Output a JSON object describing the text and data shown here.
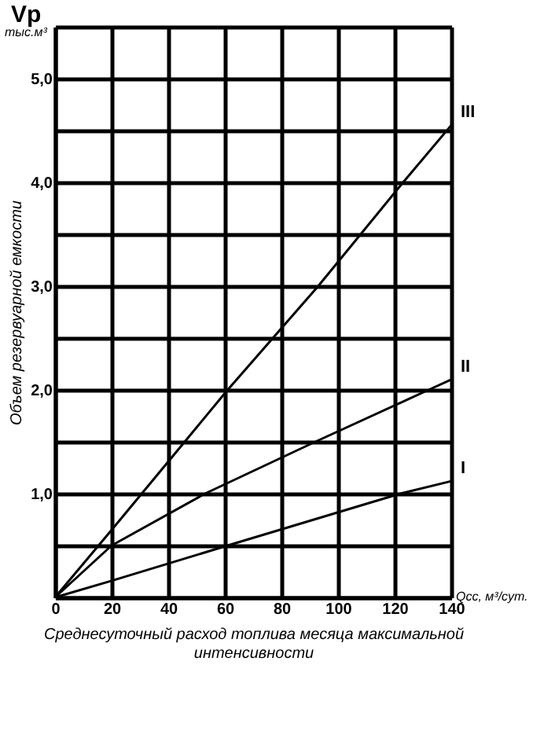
{
  "chart_data": {
    "type": "line",
    "xlabel": "Среднесуточный расход топлива месяца максимальной интенсивности",
    "ylabel": "Объем резервуарной емкости",
    "annotations": [
      "Vр",
      "тыс.м³",
      "Qсс, м³/сут."
    ],
    "series": [
      {
        "name": "I",
        "color": "#000000",
        "x": [
          0,
          20,
          61,
          122,
          140
        ],
        "values": [
          0,
          0.16,
          0.5,
          1.0,
          1.12
        ]
      },
      {
        "name": "II",
        "color": "#000000",
        "x": [
          0,
          20,
          53,
          92,
          132,
          140
        ],
        "values": [
          0,
          0.5,
          1.0,
          1.5,
          2.0,
          2.1
        ]
      },
      {
        "name": "III",
        "color": "#000000",
        "x": [
          0,
          20,
          61,
          93,
          123,
          140
        ],
        "values": [
          0,
          0.65,
          2.0,
          3.0,
          4.0,
          4.55
        ]
      }
    ],
    "xlim": [
      0,
      140
    ],
    "xticks": [
      0,
      20,
      40,
      60,
      80,
      100,
      120,
      140
    ],
    "ylim": [
      0,
      5.5
    ],
    "yticks": [
      {
        "value": 0,
        "label": null
      },
      {
        "value": 0.5,
        "label": null
      },
      {
        "value": 1,
        "label": "1,0"
      },
      {
        "value": 1.5,
        "label": null
      },
      {
        "value": 2,
        "label": "2,0"
      },
      {
        "value": 2.5,
        "label": null
      },
      {
        "value": 3,
        "label": "3,0"
      },
      {
        "value": 3.5,
        "label": null
      },
      {
        "value": 4,
        "label": "4,0"
      },
      {
        "value": 4.5,
        "label": null
      },
      {
        "value": 5,
        "label": "5,0"
      },
      {
        "value": 5.5,
        "label": null
      }
    ],
    "grid": true,
    "marker": "none",
    "line_style": "solid"
  }
}
